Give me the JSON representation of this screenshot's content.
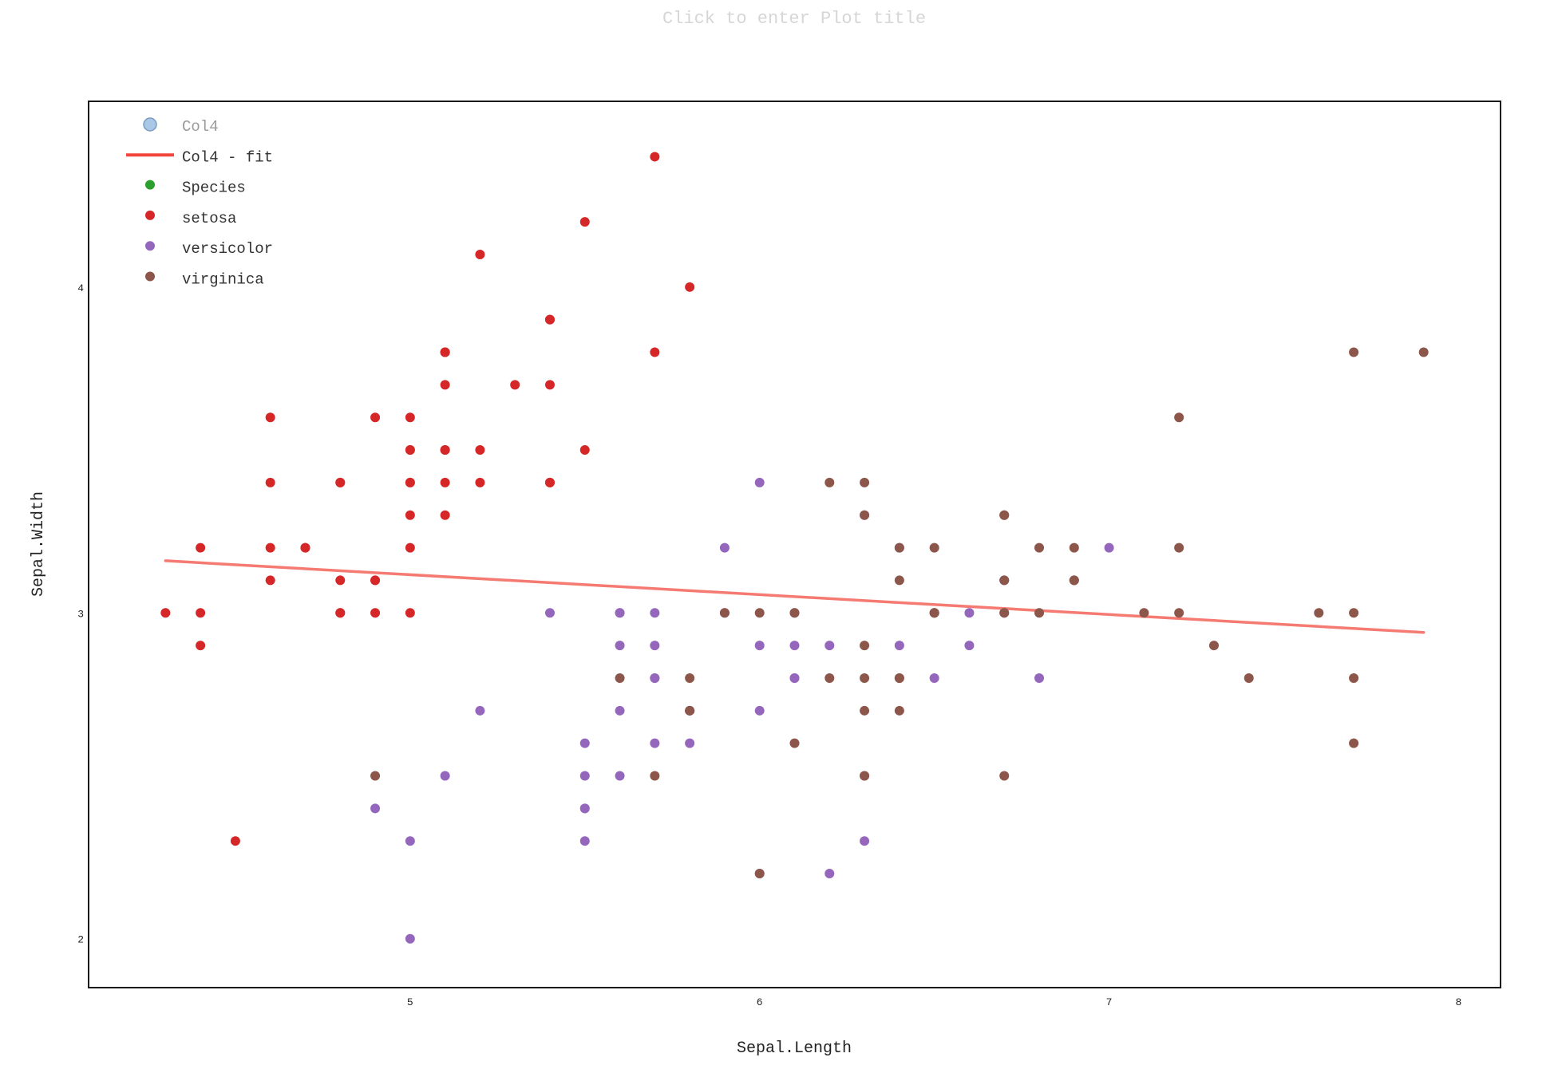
{
  "chart_data": {
    "type": "scatter",
    "title": "Click to enter Plot title",
    "xlabel": "Sepal.Length",
    "ylabel": "Sepal.Width",
    "xlim": [
      4.08,
      8.12
    ],
    "ylim": [
      1.85,
      4.57
    ],
    "xticks": [
      5,
      6,
      7,
      8
    ],
    "yticks": [
      2,
      3,
      4
    ],
    "grid": false,
    "legend_position": "top-left",
    "legend": [
      {
        "label": "Col4",
        "kind": "marker-muted",
        "color": "#a8c8e6"
      },
      {
        "label": "Col4 - fit",
        "kind": "line",
        "color": "#f0463c"
      },
      {
        "label": "Species",
        "kind": "marker",
        "color": "#2ca02c"
      },
      {
        "label": "setosa",
        "kind": "marker",
        "color": "#d62728"
      },
      {
        "label": "versicolor",
        "kind": "marker",
        "color": "#9467bd"
      },
      {
        "label": "virginica",
        "kind": "marker",
        "color": "#8c564b"
      }
    ],
    "fit": {
      "name": "Col4 - fit",
      "color": "#f47a72",
      "x": [
        4.3,
        7.9
      ],
      "y": [
        3.16,
        2.94
      ]
    },
    "series": [
      {
        "name": "setosa",
        "color": "#d62728",
        "points": [
          [
            5.1,
            3.5
          ],
          [
            4.9,
            3.0
          ],
          [
            4.7,
            3.2
          ],
          [
            4.6,
            3.1
          ],
          [
            5.0,
            3.6
          ],
          [
            5.4,
            3.9
          ],
          [
            4.6,
            3.4
          ],
          [
            5.0,
            3.4
          ],
          [
            4.4,
            2.9
          ],
          [
            4.9,
            3.1
          ],
          [
            5.4,
            3.7
          ],
          [
            4.8,
            3.4
          ],
          [
            4.8,
            3.0
          ],
          [
            4.3,
            3.0
          ],
          [
            5.8,
            4.0
          ],
          [
            5.7,
            4.4
          ],
          [
            5.4,
            3.9
          ],
          [
            5.1,
            3.5
          ],
          [
            5.7,
            3.8
          ],
          [
            5.1,
            3.8
          ],
          [
            5.4,
            3.4
          ],
          [
            5.1,
            3.7
          ],
          [
            4.6,
            3.6
          ],
          [
            5.1,
            3.3
          ],
          [
            4.8,
            3.4
          ],
          [
            5.0,
            3.0
          ],
          [
            5.0,
            3.4
          ],
          [
            5.2,
            3.5
          ],
          [
            5.2,
            3.4
          ],
          [
            4.7,
            3.2
          ],
          [
            4.8,
            3.1
          ],
          [
            5.4,
            3.4
          ],
          [
            5.2,
            4.1
          ],
          [
            5.5,
            4.2
          ],
          [
            4.9,
            3.1
          ],
          [
            5.0,
            3.2
          ],
          [
            5.5,
            3.5
          ],
          [
            4.9,
            3.6
          ],
          [
            4.4,
            3.0
          ],
          [
            5.1,
            3.4
          ],
          [
            5.0,
            3.5
          ],
          [
            4.5,
            2.3
          ],
          [
            4.4,
            3.2
          ],
          [
            5.0,
            3.5
          ],
          [
            5.1,
            3.8
          ],
          [
            4.8,
            3.0
          ],
          [
            5.1,
            3.8
          ],
          [
            4.6,
            3.2
          ],
          [
            5.3,
            3.7
          ],
          [
            5.0,
            3.3
          ]
        ]
      },
      {
        "name": "versicolor",
        "color": "#9467bd",
        "points": [
          [
            7.0,
            3.2
          ],
          [
            6.4,
            3.2
          ],
          [
            6.9,
            3.1
          ],
          [
            5.5,
            2.3
          ],
          [
            6.5,
            2.8
          ],
          [
            5.7,
            2.8
          ],
          [
            6.3,
            3.3
          ],
          [
            4.9,
            2.4
          ],
          [
            6.6,
            2.9
          ],
          [
            5.2,
            2.7
          ],
          [
            5.0,
            2.0
          ],
          [
            5.9,
            3.0
          ],
          [
            6.0,
            2.2
          ],
          [
            6.1,
            2.9
          ],
          [
            5.6,
            2.9
          ],
          [
            6.7,
            3.1
          ],
          [
            5.6,
            3.0
          ],
          [
            5.8,
            2.7
          ],
          [
            6.2,
            2.2
          ],
          [
            5.6,
            2.5
          ],
          [
            5.9,
            3.2
          ],
          [
            6.1,
            2.8
          ],
          [
            6.3,
            2.5
          ],
          [
            6.1,
            2.8
          ],
          [
            6.4,
            2.9
          ],
          [
            6.6,
            3.0
          ],
          [
            6.8,
            2.8
          ],
          [
            6.7,
            3.0
          ],
          [
            6.0,
            2.9
          ],
          [
            5.7,
            2.6
          ],
          [
            5.5,
            2.4
          ],
          [
            5.5,
            2.4
          ],
          [
            5.8,
            2.7
          ],
          [
            6.0,
            2.7
          ],
          [
            5.4,
            3.0
          ],
          [
            6.0,
            3.4
          ],
          [
            6.7,
            3.1
          ],
          [
            6.3,
            2.3
          ],
          [
            5.6,
            3.0
          ],
          [
            5.5,
            2.5
          ],
          [
            5.5,
            2.6
          ],
          [
            6.1,
            3.0
          ],
          [
            5.8,
            2.6
          ],
          [
            5.0,
            2.3
          ],
          [
            5.6,
            2.7
          ],
          [
            5.7,
            3.0
          ],
          [
            5.7,
            2.9
          ],
          [
            6.2,
            2.9
          ],
          [
            5.1,
            2.5
          ],
          [
            5.7,
            2.8
          ]
        ]
      },
      {
        "name": "virginica",
        "color": "#8c564b",
        "points": [
          [
            6.3,
            3.3
          ],
          [
            5.8,
            2.7
          ],
          [
            7.1,
            3.0
          ],
          [
            6.3,
            2.9
          ],
          [
            6.5,
            3.0
          ],
          [
            7.6,
            3.0
          ],
          [
            4.9,
            2.5
          ],
          [
            7.3,
            2.9
          ],
          [
            6.7,
            2.5
          ],
          [
            7.2,
            3.6
          ],
          [
            6.5,
            3.2
          ],
          [
            6.4,
            2.7
          ],
          [
            6.8,
            3.0
          ],
          [
            5.7,
            2.5
          ],
          [
            5.8,
            2.8
          ],
          [
            6.4,
            3.2
          ],
          [
            6.5,
            3.0
          ],
          [
            7.7,
            3.8
          ],
          [
            7.7,
            2.6
          ],
          [
            6.0,
            2.2
          ],
          [
            6.9,
            3.2
          ],
          [
            5.6,
            2.8
          ],
          [
            7.7,
            2.8
          ],
          [
            6.3,
            2.7
          ],
          [
            6.7,
            3.3
          ],
          [
            7.2,
            3.2
          ],
          [
            6.2,
            2.8
          ],
          [
            6.1,
            3.0
          ],
          [
            6.4,
            2.8
          ],
          [
            7.2,
            3.0
          ],
          [
            7.4,
            2.8
          ],
          [
            7.9,
            3.8
          ],
          [
            6.4,
            2.8
          ],
          [
            6.3,
            2.8
          ],
          [
            6.1,
            2.6
          ],
          [
            7.7,
            3.0
          ],
          [
            6.3,
            3.4
          ],
          [
            6.4,
            3.1
          ],
          [
            6.0,
            3.0
          ],
          [
            6.9,
            3.1
          ],
          [
            6.7,
            3.1
          ],
          [
            6.9,
            3.1
          ],
          [
            5.8,
            2.7
          ],
          [
            6.8,
            3.2
          ],
          [
            6.7,
            3.3
          ],
          [
            6.7,
            3.0
          ],
          [
            6.3,
            2.5
          ],
          [
            6.5,
            3.0
          ],
          [
            6.2,
            3.4
          ],
          [
            5.9,
            3.0
          ]
        ]
      }
    ]
  }
}
